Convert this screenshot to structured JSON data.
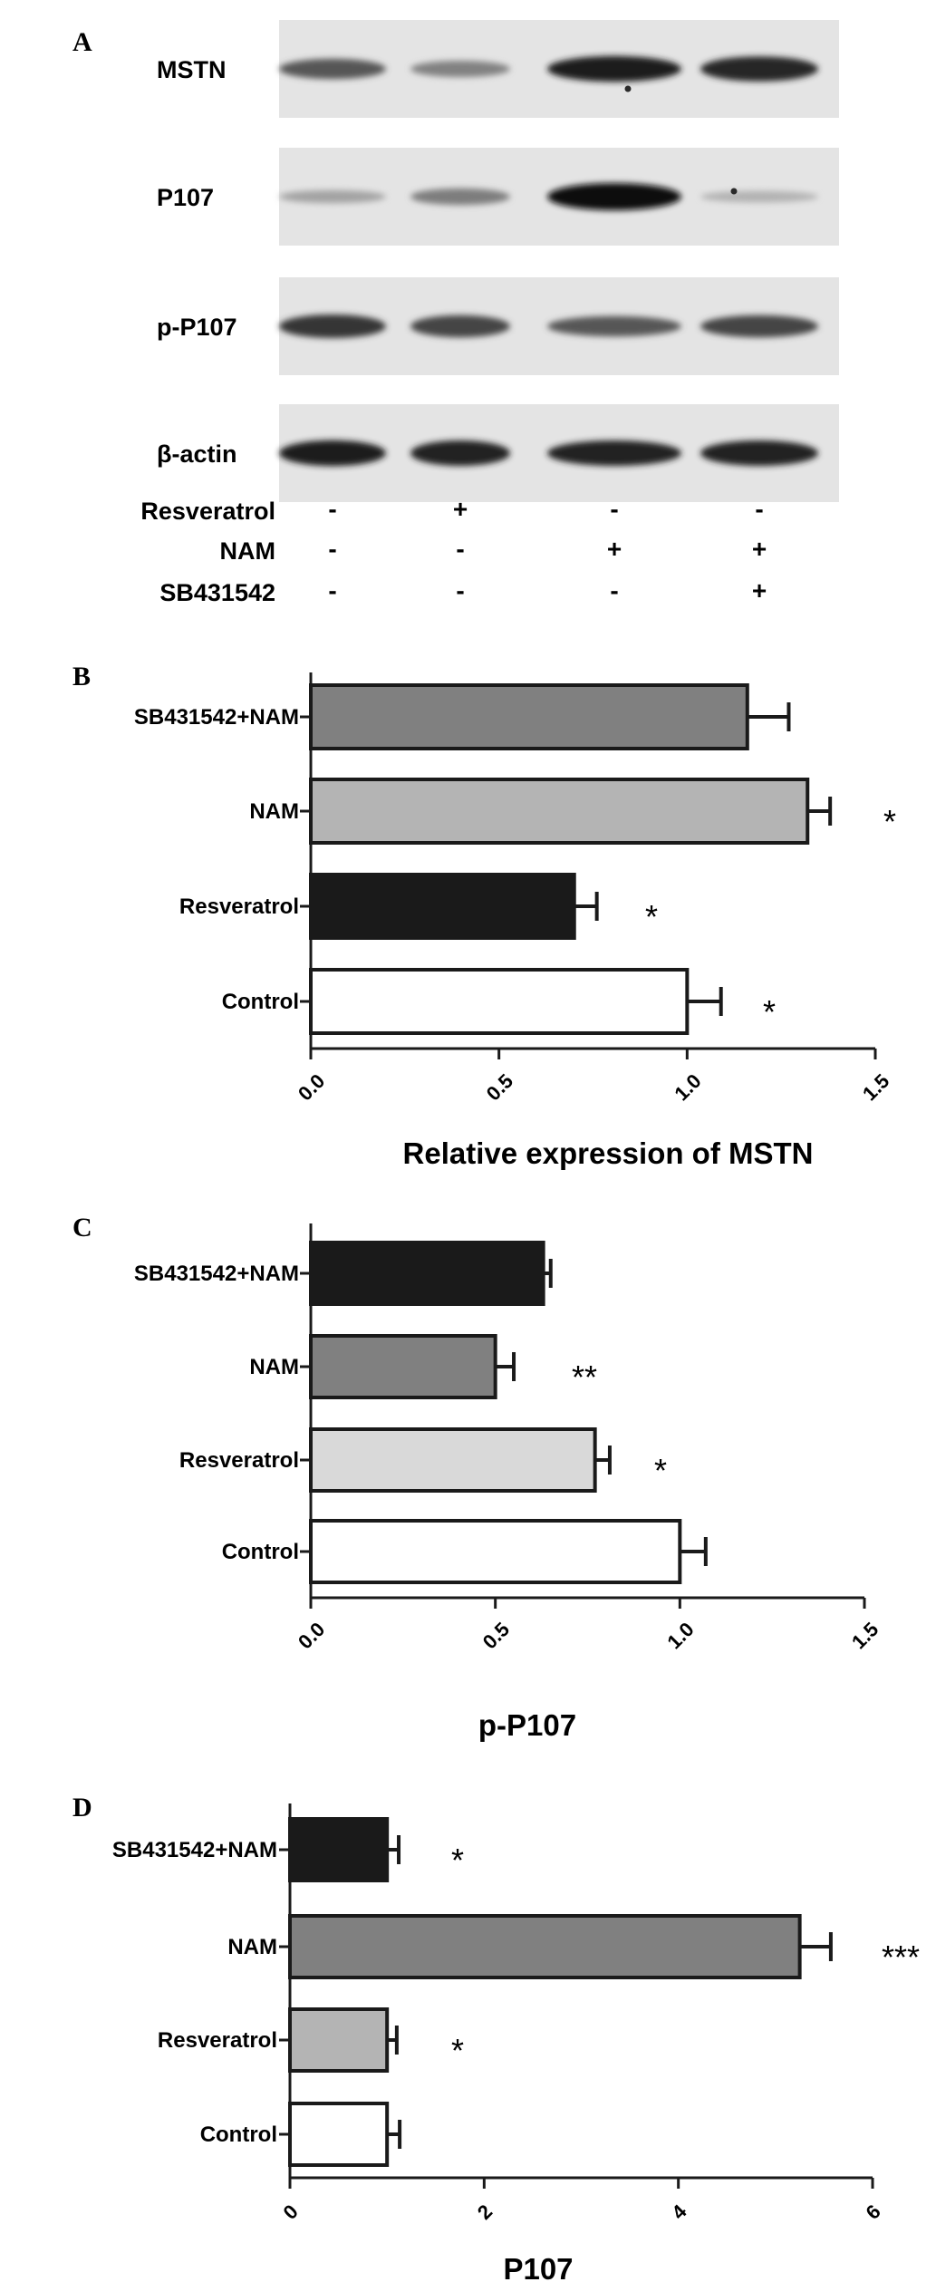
{
  "panel_a": {
    "letter": "A",
    "rows": [
      {
        "label": "MSTN",
        "intensities": [
          0.62,
          0.4,
          0.92,
          0.88
        ],
        "spots": [
          {
            "lane": 2,
            "dx": 15,
            "dy": 22
          }
        ]
      },
      {
        "label": "P107",
        "intensities": [
          0.22,
          0.42,
          1.0,
          0.14
        ],
        "spots": [
          {
            "lane": 3,
            "dx": -28,
            "dy": -6
          }
        ]
      },
      {
        "label": "p-P107",
        "intensities": [
          0.8,
          0.72,
          0.62,
          0.72
        ],
        "spots": []
      },
      {
        "label": "β-actin",
        "intensities": [
          0.92,
          0.9,
          0.9,
          0.9
        ],
        "spots": []
      }
    ],
    "treatments": [
      {
        "label": "Resveratrol",
        "signs": [
          "-",
          "+",
          "-",
          "-"
        ]
      },
      {
        "label": "NAM",
        "signs": [
          "-",
          "-",
          "+",
          "+"
        ]
      },
      {
        "label": "SB431542",
        "signs": [
          "-",
          "-",
          "-",
          "+"
        ]
      }
    ]
  },
  "chart_data": [
    {
      "panel": "B",
      "type": "bar",
      "orientation": "horizontal",
      "categories": [
        "SB431542+NAM",
        "NAM",
        "Resveratrol",
        "Control"
      ],
      "values": [
        1.16,
        1.32,
        0.7,
        1.0
      ],
      "errors": [
        0.11,
        0.06,
        0.06,
        0.09
      ],
      "fill_colors": [
        "#808080",
        "#b4b4b4",
        "#1a1a1a",
        "#ffffff"
      ],
      "significance": [
        "",
        "*",
        "*",
        "*"
      ],
      "xlim": [
        0,
        1.5
      ],
      "xticks": [
        "0.0",
        "0.5",
        "1.0",
        "1.5"
      ],
      "xlabel": "Relative expression of MSTN"
    },
    {
      "panel": "C",
      "type": "bar",
      "orientation": "horizontal",
      "categories": [
        "SB431542+NAM",
        "NAM",
        "Resveratrol",
        "Control"
      ],
      "values": [
        0.63,
        0.5,
        0.77,
        1.0
      ],
      "errors": [
        0.02,
        0.05,
        0.04,
        0.07
      ],
      "fill_colors": [
        "#1a1a1a",
        "#808080",
        "#d9d9d9",
        "#ffffff"
      ],
      "significance": [
        "",
        "**",
        "*",
        ""
      ],
      "xlim": [
        0,
        1.5
      ],
      "xticks": [
        "0.0",
        "0.5",
        "1.0",
        "1.5"
      ],
      "xlabel": "p-P107"
    },
    {
      "panel": "D",
      "type": "bar",
      "orientation": "horizontal",
      "categories": [
        "SB431542+NAM",
        "NAM",
        "Resveratrol",
        "Control"
      ],
      "values": [
        1.0,
        5.25,
        1.0,
        1.0
      ],
      "errors": [
        0.12,
        0.32,
        0.1,
        0.13
      ],
      "fill_colors": [
        "#1a1a1a",
        "#808080",
        "#b4b4b4",
        "#ffffff"
      ],
      "significance": [
        "*",
        "***",
        "*",
        ""
      ],
      "xlim": [
        0,
        6
      ],
      "xticks": [
        "0",
        "2",
        "4",
        "6"
      ],
      "xlabel": "P107"
    }
  ]
}
